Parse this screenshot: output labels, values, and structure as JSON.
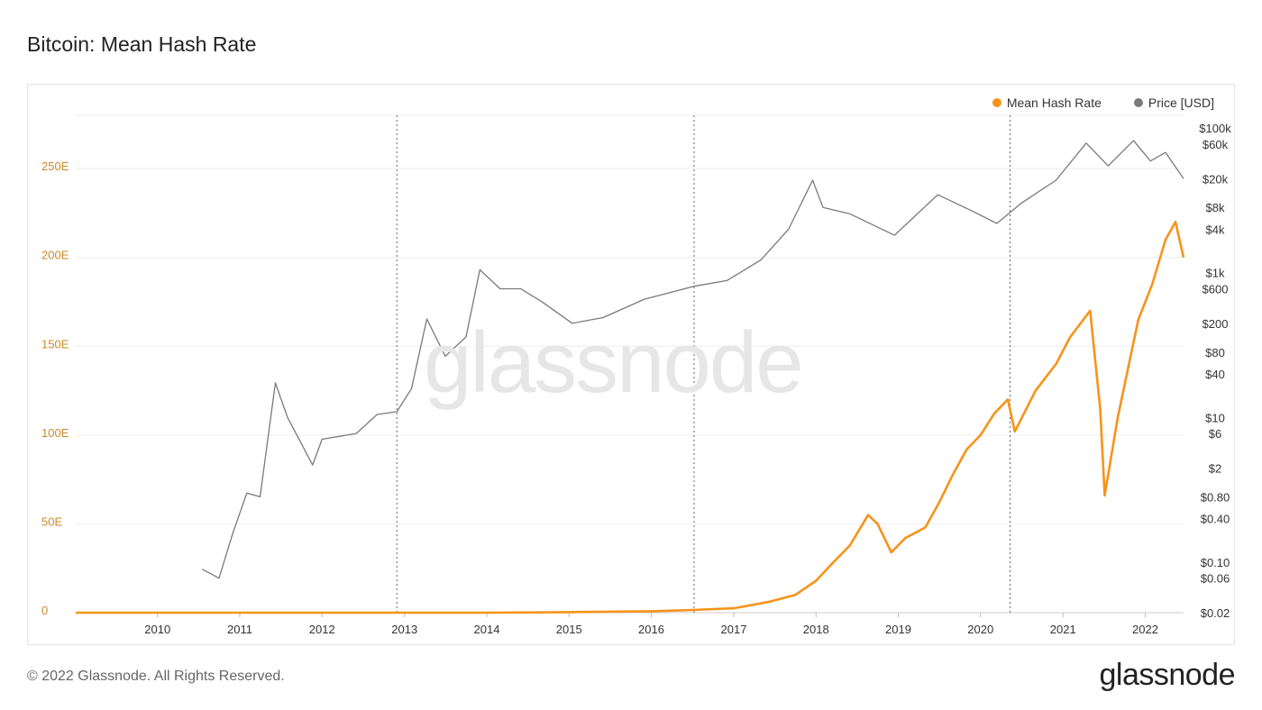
{
  "title": "Bitcoin: Mean Hash Rate",
  "footer": "© 2022 Glassnode. All Rights Reserved.",
  "brand": "glassnode",
  "watermark": "glassnode",
  "colors": {
    "hash": "#f7931a",
    "price": "#7a7a7a",
    "left_axis_text": "#c98a2a",
    "grid": "#eeeeee",
    "halving_line": "#666666"
  },
  "legend": [
    {
      "label": "Mean Hash Rate",
      "color": "#f7931a"
    },
    {
      "label": "Price [USD]",
      "color": "#7a7a7a"
    }
  ],
  "chart_data": {
    "type": "line",
    "x_tick_labels": [
      "2010",
      "2011",
      "2012",
      "2013",
      "2014",
      "2015",
      "2016",
      "2017",
      "2018",
      "2019",
      "2020",
      "2021",
      "2022"
    ],
    "left_axis_ticks": [
      "0",
      "50E",
      "100E",
      "150E",
      "200E",
      "250E"
    ],
    "left_axis_values": [
      0,
      50,
      100,
      150,
      200,
      250
    ],
    "ylim_left": [
      0,
      280
    ],
    "right_axis_ticks": [
      "$100k",
      "$60k",
      "$20k",
      "$8k",
      "$4k",
      "$1k",
      "$600",
      "$200",
      "$80",
      "$40",
      "$10",
      "$6",
      "$2",
      "$0.80",
      "$0.40",
      "$0.10",
      "$0.06",
      "$0.02"
    ],
    "right_axis_values": [
      100000,
      60000,
      20000,
      8000,
      4000,
      1000,
      600,
      200,
      80,
      40,
      10,
      6,
      2,
      0.8,
      0.4,
      0.1,
      0.06,
      0.02
    ],
    "right_scale": "log",
    "ylim_right": [
      0.02,
      150000
    ],
    "xlim": [
      "2009-01-03",
      "2022-06-20"
    ],
    "halvings": [
      "2012-11-28",
      "2016-07-09",
      "2020-05-11"
    ],
    "series": [
      {
        "name": "Mean Hash Rate",
        "axis": "left",
        "unit": "EH/s",
        "points": [
          [
            "2009-01-03",
            0
          ],
          [
            "2014-01-01",
            0.01
          ],
          [
            "2015-01-01",
            0.3
          ],
          [
            "2016-01-01",
            0.8
          ],
          [
            "2016-07-01",
            1.5
          ],
          [
            "2017-01-01",
            2.5
          ],
          [
            "2017-06-01",
            6
          ],
          [
            "2017-10-01",
            10
          ],
          [
            "2018-01-01",
            18
          ],
          [
            "2018-03-01",
            26
          ],
          [
            "2018-06-01",
            38
          ],
          [
            "2018-08-20",
            55
          ],
          [
            "2018-10-01",
            50
          ],
          [
            "2018-12-01",
            34
          ],
          [
            "2019-02-01",
            42
          ],
          [
            "2019-05-01",
            48
          ],
          [
            "2019-07-01",
            62
          ],
          [
            "2019-09-01",
            78
          ],
          [
            "2019-11-01",
            92
          ],
          [
            "2020-01-01",
            100
          ],
          [
            "2020-03-01",
            112
          ],
          [
            "2020-05-01",
            120
          ],
          [
            "2020-06-01",
            102
          ],
          [
            "2020-09-01",
            125
          ],
          [
            "2020-12-01",
            140
          ],
          [
            "2021-02-01",
            155
          ],
          [
            "2021-05-01",
            170
          ],
          [
            "2021-06-15",
            115
          ],
          [
            "2021-07-05",
            66
          ],
          [
            "2021-09-01",
            110
          ],
          [
            "2021-12-01",
            165
          ],
          [
            "2022-02-01",
            185
          ],
          [
            "2022-04-01",
            210
          ],
          [
            "2022-05-15",
            220
          ],
          [
            "2022-06-20",
            200
          ]
        ]
      },
      {
        "name": "Price [USD]",
        "axis": "right",
        "points": [
          [
            "2010-07-18",
            0.08
          ],
          [
            "2010-10-01",
            0.06
          ],
          [
            "2010-12-01",
            0.25
          ],
          [
            "2011-02-01",
            0.9
          ],
          [
            "2011-04-01",
            0.8
          ],
          [
            "2011-06-08",
            30
          ],
          [
            "2011-08-01",
            10
          ],
          [
            "2011-11-20",
            2.2
          ],
          [
            "2012-01-01",
            5
          ],
          [
            "2012-06-01",
            6
          ],
          [
            "2012-09-01",
            11
          ],
          [
            "2012-11-28",
            12
          ],
          [
            "2013-02-01",
            25
          ],
          [
            "2013-04-10",
            230
          ],
          [
            "2013-07-01",
            70
          ],
          [
            "2013-10-01",
            130
          ],
          [
            "2013-12-01",
            1100
          ],
          [
            "2014-03-01",
            600
          ],
          [
            "2014-06-01",
            600
          ],
          [
            "2014-09-01",
            400
          ],
          [
            "2015-01-15",
            200
          ],
          [
            "2015-06-01",
            240
          ],
          [
            "2015-12-01",
            430
          ],
          [
            "2016-07-09",
            650
          ],
          [
            "2016-12-01",
            780
          ],
          [
            "2017-05-01",
            1500
          ],
          [
            "2017-09-01",
            4000
          ],
          [
            "2017-12-17",
            19000
          ],
          [
            "2018-02-01",
            8000
          ],
          [
            "2018-06-01",
            6500
          ],
          [
            "2018-12-15",
            3300
          ],
          [
            "2019-06-25",
            12000
          ],
          [
            "2019-12-01",
            7000
          ],
          [
            "2020-03-13",
            4800
          ],
          [
            "2020-07-01",
            9200
          ],
          [
            "2020-12-01",
            19000
          ],
          [
            "2021-04-14",
            62000
          ],
          [
            "2021-07-20",
            30000
          ],
          [
            "2021-11-10",
            67000
          ],
          [
            "2022-01-24",
            35000
          ],
          [
            "2022-04-01",
            46000
          ],
          [
            "2022-06-20",
            20000
          ]
        ]
      }
    ]
  }
}
